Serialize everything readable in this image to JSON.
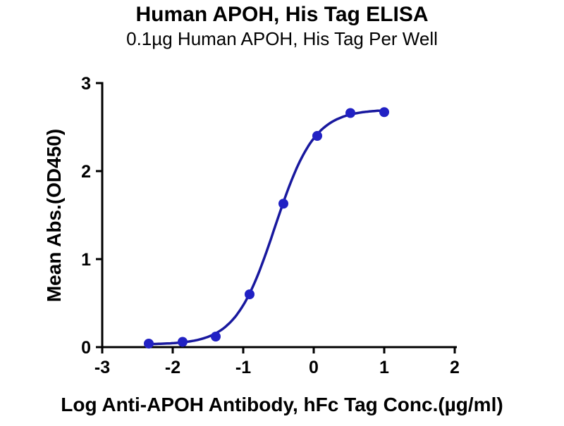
{
  "chart_data": {
    "type": "scatter",
    "title": "Human APOH, His Tag ELISA",
    "subtitle": "0.1µg Human APOH, His Tag Per Well",
    "xlabel": "Log Anti-APOH Antibody, hFc Tag Conc.(µg/ml)",
    "ylabel": "Mean Abs.(OD450)",
    "xlim": [
      -3,
      2
    ],
    "ylim": [
      0,
      3
    ],
    "xticks": [
      -3,
      -2,
      -1,
      0,
      1,
      2
    ],
    "yticks": [
      0,
      1,
      2,
      3
    ],
    "grid": false,
    "legend": "none",
    "axis_color": "#000000",
    "series": [
      {
        "name": "Anti-APOH Antibody, hFc Tag",
        "x": [
          -2.34,
          -1.86,
          -1.39,
          -0.91,
          -0.43,
          0.05,
          0.52,
          1.0
        ],
        "y": [
          0.04,
          0.06,
          0.12,
          0.6,
          1.63,
          2.4,
          2.66,
          2.67
        ],
        "marker": "circle",
        "marker_color": "#2121c4",
        "line_color": "#18189e",
        "fit": {
          "type": "4pl-sigmoid",
          "bottom": 0.03,
          "top": 2.7,
          "log_ec50": -0.55,
          "hill": 1.55
        }
      }
    ]
  }
}
